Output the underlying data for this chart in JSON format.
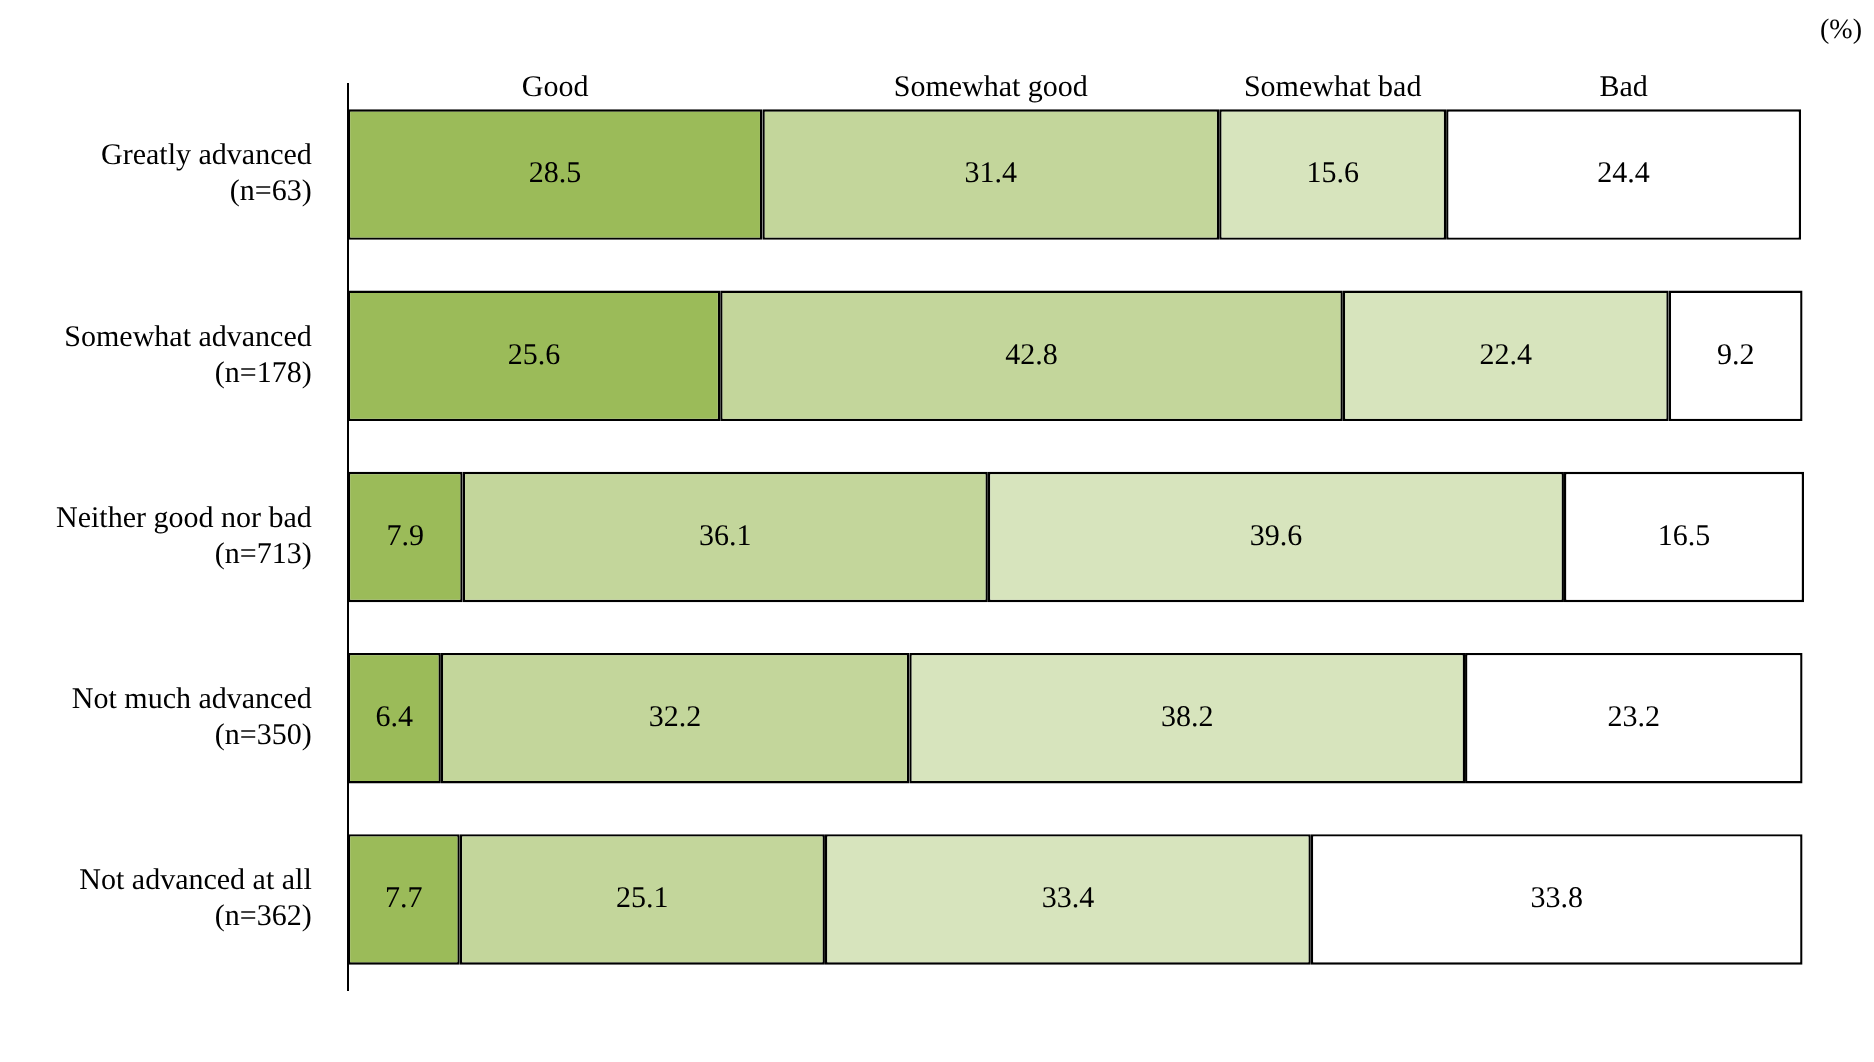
{
  "chart_data": {
    "type": "bar",
    "orientation": "horizontal",
    "stacked": true,
    "data_labels": true,
    "grid": false,
    "legend": false,
    "tick_labels": "y",
    "categories": [
      "Greatly advanced\n(n=63)",
      "Somewhat advanced\n(n=178)",
      "Neither good nor bad\n(n=713)",
      "Not much advanced\n(n=350)",
      "Not advanced at all\n(n=362)"
    ],
    "series": [
      {
        "name": "Good",
        "color": "#9bbb59",
        "values": [
          28.5,
          25.6,
          7.9,
          6.4,
          7.7
        ]
      },
      {
        "name": "Somewhat good",
        "color": "#c3d69b",
        "values": [
          31.4,
          42.8,
          36.1,
          32.2,
          25.1
        ]
      },
      {
        "name": "Somewhat bad",
        "color": "#d7e4bd",
        "values": [
          15.6,
          22.4,
          39.6,
          38.2,
          33.4
        ]
      },
      {
        "name": "Bad",
        "color": "#ffffff",
        "values": [
          24.4,
          9.2,
          16.5,
          23.2,
          33.8
        ]
      }
    ],
    "annotations": [
      "(%)"
    ]
  }
}
